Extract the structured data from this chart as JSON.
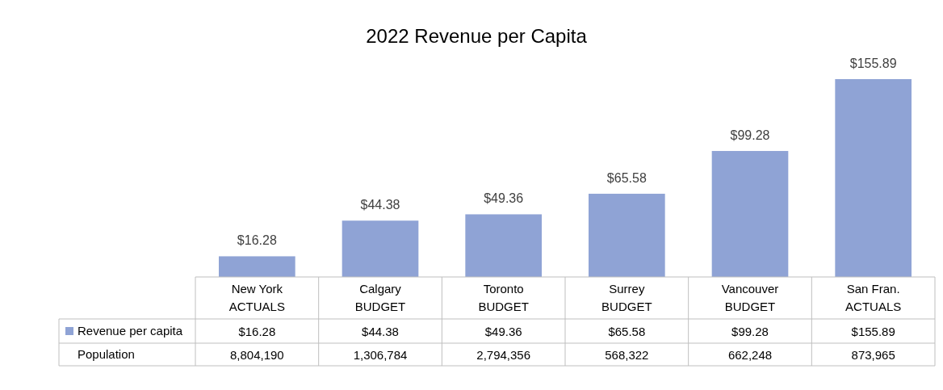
{
  "chart_data": {
    "type": "bar",
    "title": "2022 Revenue per Capita",
    "categories": [
      "New York ACTUALS",
      "Calgary BUDGET",
      "Toronto BUDGET",
      "Surrey BUDGET",
      "Vancouver BUDGET",
      "San Fran. ACTUALS"
    ],
    "series": [
      {
        "name": "Revenue per capita",
        "color": "#8fa3d5",
        "values": [
          16.28,
          44.38,
          49.36,
          65.58,
          99.28,
          155.89
        ],
        "value_labels": [
          "$16.28",
          "$44.38",
          "$49.36",
          "$65.58",
          "$99.28",
          "$155.89"
        ]
      }
    ],
    "data_labels": true,
    "legend": "bottom",
    "annotations": [
      "Population",
      "8,804,190",
      "1,306,784",
      "2,794,356",
      "568,322",
      "662,248",
      "873,965"
    ]
  }
}
